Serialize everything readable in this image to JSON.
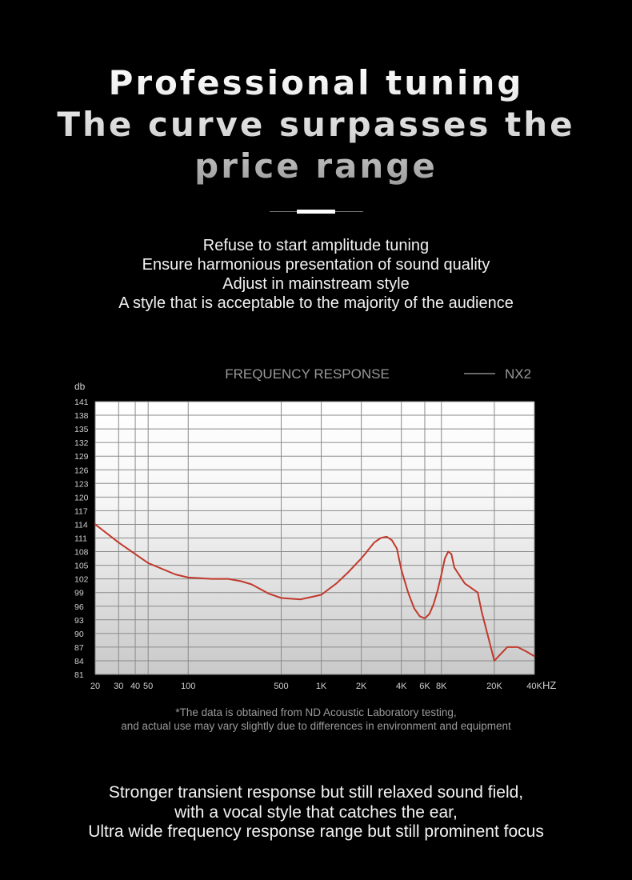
{
  "headline": {
    "lines": [
      "Professional tuning",
      "The curve surpasses the",
      "price range"
    ]
  },
  "intro": {
    "lines": [
      "Refuse to start amplitude tuning",
      "Ensure harmonious presentation of sound quality",
      "Adjust in mainstream style",
      "A style that is acceptable to the majority of the audience"
    ]
  },
  "chart_data": {
    "type": "line",
    "title": "FREQUENCY RESPONSE",
    "ylabel": "db",
    "xlabel": "HZ",
    "x_scale": "log",
    "xlim": [
      20,
      40000
    ],
    "ylim": [
      81,
      141
    ],
    "x_ticks": [
      20,
      30,
      40,
      50,
      100,
      500,
      1000,
      2000,
      4000,
      6000,
      8000,
      20000,
      40000
    ],
    "x_tick_labels": [
      "20",
      "30",
      "40",
      "50",
      "100",
      "500",
      "1K",
      "2K",
      "4K",
      "6K",
      "8K",
      "20K",
      "40K"
    ],
    "y_ticks": [
      81,
      84,
      87,
      90,
      93,
      96,
      99,
      102,
      105,
      108,
      111,
      114,
      117,
      120,
      123,
      126,
      129,
      132,
      135,
      138,
      141
    ],
    "legend": {
      "position": "top-right"
    },
    "colors": {
      "line": "#c0392b",
      "legend_line": "#8a8a8a"
    },
    "series": [
      {
        "name": "NX2",
        "x": [
          20,
          30,
          50,
          80,
          100,
          150,
          200,
          250,
          300,
          400,
          500,
          700,
          1000,
          1300,
          1600,
          2000,
          2500,
          2800,
          3100,
          3400,
          3700,
          4000,
          4500,
          5000,
          5500,
          6000,
          6500,
          7000,
          7500,
          8000,
          8500,
          9000,
          9500,
          10000,
          12000,
          15000,
          16000,
          20000,
          25000,
          30000,
          35000,
          40000
        ],
        "y": [
          114,
          110,
          105.5,
          103,
          102.3,
          102,
          102,
          101.5,
          100.8,
          98.8,
          97.8,
          97.5,
          98.5,
          101,
          103.5,
          106.5,
          110,
          111,
          111.3,
          110.5,
          108.7,
          104,
          99,
          95.5,
          93.8,
          93.3,
          94.3,
          96.5,
          99.5,
          103,
          106.5,
          108,
          107.5,
          104.5,
          101,
          99,
          95,
          84,
          87,
          87,
          86,
          85
        ]
      }
    ]
  },
  "footnote": {
    "lines": [
      "*The data is obtained from ND Acoustic Laboratory testing,",
      "and actual use may vary slightly due to differences in environment and equipment"
    ]
  },
  "outro": {
    "lines": [
      "Stronger transient response but still relaxed sound field,",
      "with a vocal style that catches the ear,",
      "Ultra wide frequency response range but still prominent focus"
    ]
  }
}
